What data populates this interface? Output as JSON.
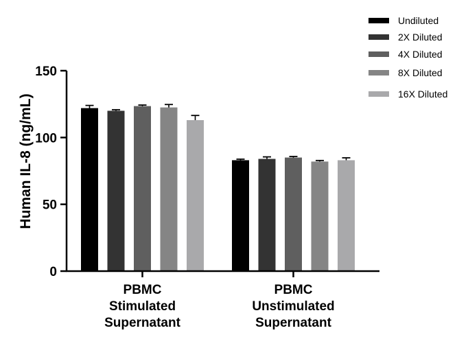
{
  "chart_data": {
    "type": "bar",
    "title": "",
    "xlabel": "",
    "ylabel": "Human IL-8 (ng/mL)",
    "ylim": [
      0,
      150
    ],
    "yticks": [
      "0",
      "50",
      "100",
      "150"
    ],
    "grid": false,
    "legend_position": "top-right",
    "categories": [
      [
        "PBMC",
        "Stimulated",
        "Supernatant"
      ],
      [
        "PBMC",
        "Unstimulated",
        "Supernatant"
      ]
    ],
    "series": [
      {
        "name": "Undiluted",
        "color": "#000000",
        "values": [
          122,
          83
        ],
        "errors": [
          2,
          0.8
        ]
      },
      {
        "name": "2X Diluted",
        "color": "#333333",
        "values": [
          120,
          84
        ],
        "errors": [
          0.8,
          1.5
        ]
      },
      {
        "name": "4X Diluted",
        "color": "#5f5f5f",
        "values": [
          123.5,
          85
        ],
        "errors": [
          0.8,
          0.8
        ]
      },
      {
        "name": "8X Diluted",
        "color": "#858585",
        "values": [
          122.5,
          82
        ],
        "errors": [
          2.2,
          0.8
        ]
      },
      {
        "name": "16X Diluted",
        "color": "#a9a9ab",
        "values": [
          113,
          83
        ],
        "errors": [
          3.5,
          1.8
        ]
      }
    ]
  }
}
